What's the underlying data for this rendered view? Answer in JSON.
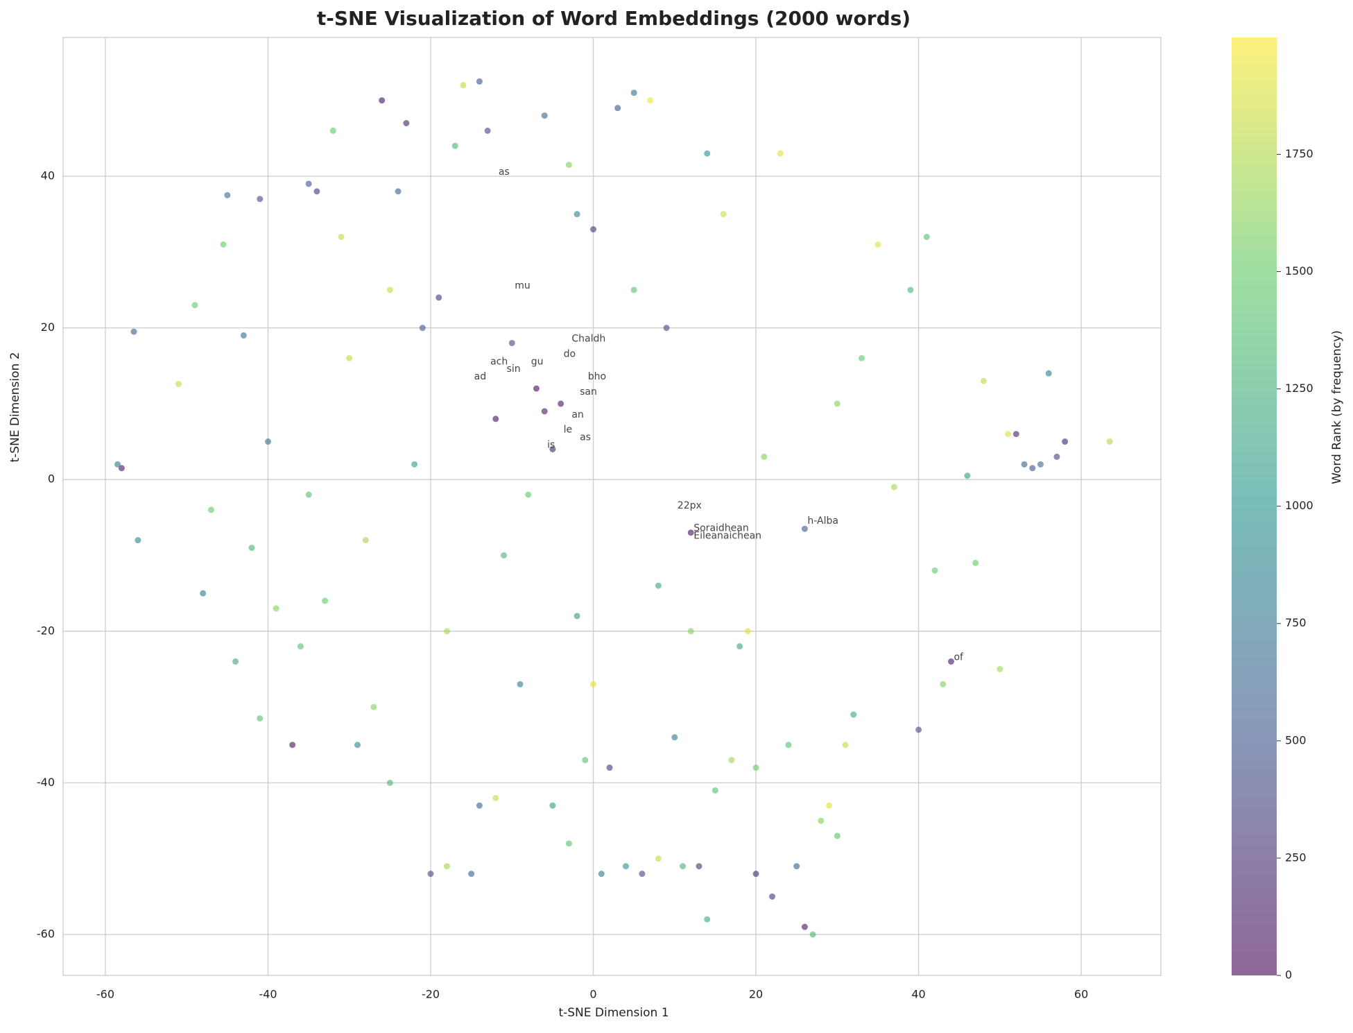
{
  "chart_data": {
    "type": "scatter",
    "title": "t-SNE Visualization of Word Embeddings (2000 words)",
    "x_label": "t-SNE Dimension 1",
    "y_label": "t-SNE Dimension 2",
    "colorbar_label": "Word Rank (by frequency)",
    "colormap": "viridis",
    "xlim": [
      -65.2,
      69.8
    ],
    "ylim": [
      -65.4,
      58.3
    ],
    "xticks": [
      -60,
      -40,
      -20,
      0,
      20,
      40,
      60
    ],
    "yticks": [
      -60,
      -40,
      -20,
      0,
      20,
      40
    ],
    "clim": [
      0,
      1999
    ],
    "cticks": [
      0,
      250,
      500,
      750,
      1000,
      1250,
      1500,
      1750
    ],
    "grid": true,
    "series": [
      {
        "name": "words",
        "x": [
          -58,
          -58.5,
          -56.5,
          -56,
          -51,
          -49,
          -48,
          -47,
          -45.5,
          -45,
          -44,
          -43,
          -42,
          -41,
          -41,
          -40,
          -39,
          -37,
          -36,
          -35,
          -34,
          -33,
          -32,
          -31,
          -30,
          -29,
          -28,
          -27,
          -26,
          -25,
          -24,
          -23,
          -22,
          -21,
          -20,
          -19,
          -18,
          -17,
          -16,
          -15,
          -14,
          -14,
          -13,
          -12,
          -12,
          -11,
          -10,
          -9,
          -8,
          -7,
          -6,
          -6,
          -5,
          -5,
          -4,
          -3,
          -3,
          -2,
          -1,
          0,
          0,
          1,
          2,
          3,
          4,
          5,
          6,
          7,
          8,
          9,
          10,
          11,
          12,
          13,
          14,
          14,
          15,
          16,
          17,
          18,
          19,
          20,
          21,
          22,
          23,
          24,
          25,
          26,
          26,
          27,
          28,
          29,
          30,
          31,
          32,
          33,
          35,
          37,
          39,
          40,
          41,
          42,
          43,
          44,
          46,
          47,
          48,
          50,
          51,
          52,
          53,
          54,
          55,
          56,
          57,
          58,
          63.5,
          -2,
          8,
          12,
          -25,
          -35,
          20,
          -18,
          5,
          30
        ],
        "y": [
          1.5,
          2,
          19.5,
          -8,
          12.6,
          23,
          -15,
          -4,
          31,
          37.5,
          -24,
          19,
          -9,
          37,
          -31.5,
          5,
          -17,
          -35,
          -22,
          39,
          38,
          -16,
          46,
          32,
          16,
          -35,
          -8,
          -30,
          50,
          -40,
          38,
          47,
          2,
          20,
          -52,
          24,
          -51,
          44,
          52,
          -52,
          52.5,
          -43,
          46,
          -42,
          8,
          -10,
          18,
          -27,
          -2,
          12,
          48,
          9,
          -43,
          4,
          10,
          -48,
          41.5,
          35,
          -37,
          -27,
          33,
          -52,
          -38,
          49,
          -51,
          51,
          -52,
          50,
          -50,
          20,
          -34,
          -51,
          -7,
          -51,
          43,
          -58,
          -41,
          35,
          -37,
          -22,
          -20,
          -52,
          3,
          -55,
          43,
          -35,
          -51,
          -59,
          -6.5,
          -60,
          -45,
          -43,
          -47,
          -35,
          -31,
          16,
          31,
          -1,
          25,
          -33,
          32,
          -12,
          -27,
          -24,
          0.5,
          -11,
          13,
          -25,
          6,
          6,
          2,
          1.5,
          2,
          14,
          3,
          5,
          5,
          -18,
          -14,
          -20,
          25,
          -2,
          -38,
          -20,
          25,
          10
        ],
        "c": [
          100,
          800,
          600,
          900,
          1800,
          1500,
          800,
          1500,
          1500,
          700,
          1200,
          700,
          1300,
          400,
          1400,
          700,
          1600,
          100,
          1400,
          500,
          300,
          1500,
          1500,
          1800,
          1800,
          900,
          1700,
          1600,
          100,
          1300,
          600,
          200,
          1100,
          500,
          400,
          300,
          1700,
          1300,
          1800,
          600,
          500,
          600,
          400,
          1800,
          100,
          1300,
          400,
          800,
          1500,
          50,
          600,
          150,
          1100,
          200,
          100,
          1400,
          1600,
          900,
          1400,
          1900,
          300,
          800,
          300,
          500,
          1000,
          700,
          400,
          1950,
          1800,
          400,
          800,
          1300,
          100,
          300,
          1000,
          1200,
          1400,
          1850,
          1700,
          1200,
          1900,
          200,
          1600,
          300,
          1900,
          1400,
          600,
          100,
          500,
          1300,
          1600,
          1900,
          1400,
          1800,
          1200,
          1500,
          1900,
          1700,
          1300,
          400,
          1400,
          1500,
          1600,
          100,
          1100,
          1500,
          1800,
          1700,
          1900,
          200,
          600,
          500,
          650,
          800,
          400,
          200,
          1750,
          1100,
          1200,
          1600,
          1800,
          1400,
          1500,
          1700,
          1400,
          1600
        ]
      }
    ],
    "annotations": [
      {
        "text": "as",
        "x": -12,
        "y": 40
      },
      {
        "text": "mu",
        "x": -10,
        "y": 25
      },
      {
        "text": "Chaldh",
        "x": -3,
        "y": 18
      },
      {
        "text": "do",
        "x": -4,
        "y": 16
      },
      {
        "text": "bho",
        "x": -1,
        "y": 13
      },
      {
        "text": "ach",
        "x": -13,
        "y": 15
      },
      {
        "text": "sin",
        "x": -11,
        "y": 14
      },
      {
        "text": "gu",
        "x": -8,
        "y": 15
      },
      {
        "text": "ad",
        "x": -15,
        "y": 13
      },
      {
        "text": "san",
        "x": -2,
        "y": 11
      },
      {
        "text": "an",
        "x": -3,
        "y": 8
      },
      {
        "text": "le",
        "x": -4,
        "y": 6
      },
      {
        "text": "as",
        "x": -2,
        "y": 5
      },
      {
        "text": "is",
        "x": -6,
        "y": 4
      },
      {
        "text": "22px",
        "x": 10,
        "y": -4
      },
      {
        "text": "h-Alba",
        "x": 26,
        "y": -6
      },
      {
        "text": "Soraidhean",
        "x": 12,
        "y": -7
      },
      {
        "text": "Eileanaichean",
        "x": 12,
        "y": -8
      },
      {
        "text": "of",
        "x": 44,
        "y": -24
      }
    ]
  }
}
